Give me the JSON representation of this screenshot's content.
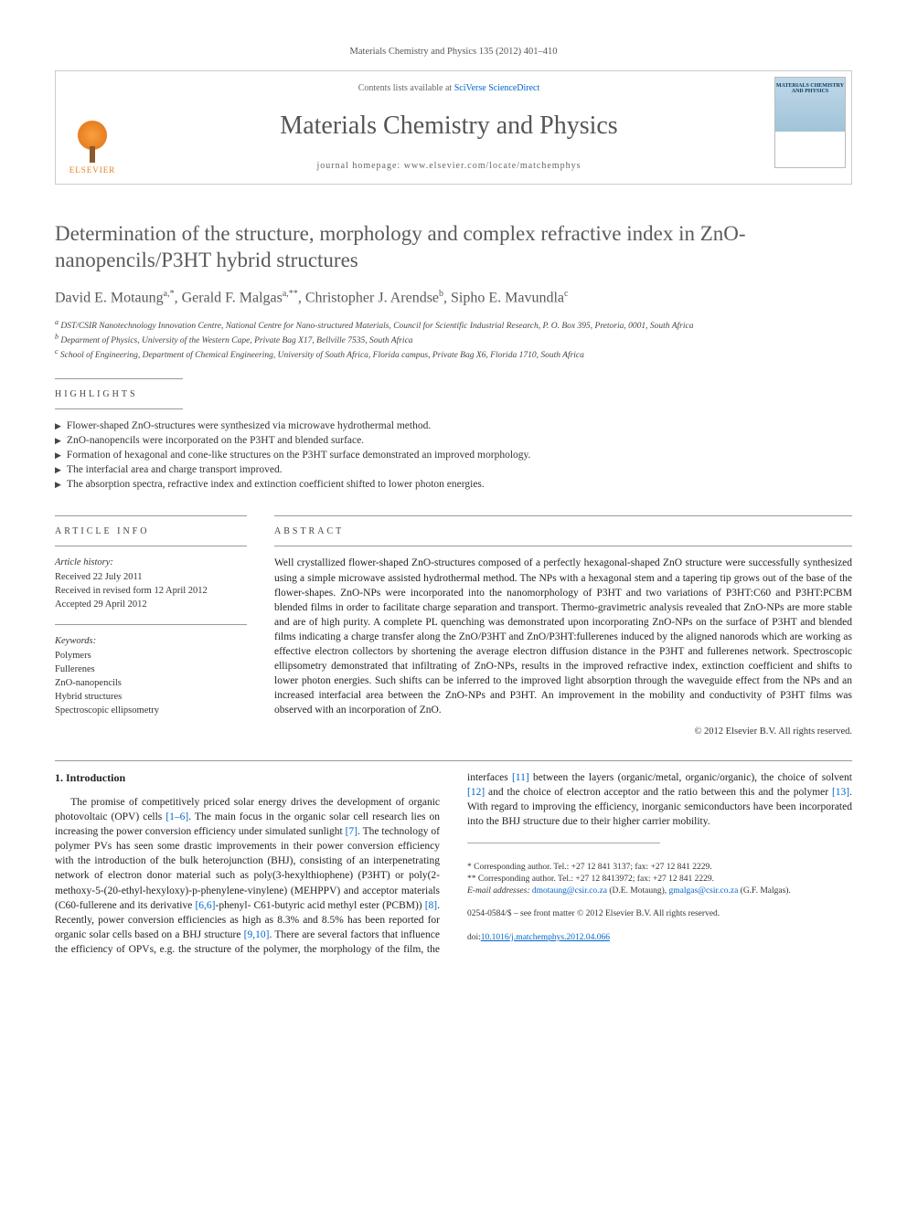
{
  "citation": "Materials Chemistry and Physics 135 (2012) 401–410",
  "header": {
    "contents_prefix": "Contents lists available at ",
    "contents_link": "SciVerse ScienceDirect",
    "journal_name": "Materials Chemistry and Physics",
    "homepage_prefix": "journal homepage: ",
    "homepage_url": "www.elsevier.com/locate/matchemphys",
    "publisher": "ELSEVIER",
    "cover_title": "MATERIALS CHEMISTRY AND PHYSICS"
  },
  "title": "Determination of the structure, morphology and complex refractive index in ZnO-nanopencils/P3HT hybrid structures",
  "authors_html": "David E. Motaung<sup>a,*</sup>, Gerald F. Malgas<sup>a,**</sup>, Christopher J. Arendse<sup>b</sup>, Sipho E. Mavundla<sup>c</sup>",
  "affiliations": [
    "a DST/CSIR Nanotechnology Innovation Centre, National Centre for Nano-structured Materials, Council for Scientific Industrial Research, P. O. Box 395, Pretoria, 0001, South Africa",
    "b Deparment of Physics, University of the Western Cape, Private Bag X17, Bellville 7535, South Africa",
    "c School of Engineering, Department of Chemical Engineering, University of South Africa, Florida campus, Private Bag X6, Florida 1710, South Africa"
  ],
  "highlights_label": "highlights",
  "highlights": [
    "Flower-shaped ZnO-structures were synthesized via microwave hydrothermal method.",
    "ZnO-nanopencils were incorporated on the P3HT and blended surface.",
    "Formation of hexagonal and cone-like structures on the P3HT surface demonstrated an improved morphology.",
    "The interfacial area and charge transport improved.",
    "The absorption spectra, refractive index and extinction coefficient shifted to lower photon energies."
  ],
  "article_info_label": "article info",
  "abstract_label": "abstract",
  "history_label": "Article history:",
  "history": [
    "Received 22 July 2011",
    "Received in revised form 12 April 2012",
    "Accepted 29 April 2012"
  ],
  "keywords_label": "Keywords:",
  "keywords": [
    "Polymers",
    "Fullerenes",
    "ZnO-nanopencils",
    "Hybrid structures",
    "Spectroscopic ellipsometry"
  ],
  "abstract": "Well crystallized flower-shaped ZnO-structures composed of a perfectly hexagonal-shaped ZnO structure were successfully synthesized using a simple microwave assisted hydrothermal method. The NPs with a hexagonal stem and a tapering tip grows out of the base of the flower-shapes. ZnO-NPs were incorporated into the nanomorphology of P3HT and two variations of P3HT:C60 and P3HT:PCBM blended films in order to facilitate charge separation and transport. Thermo-gravimetric analysis revealed that ZnO-NPs are more stable and are of high purity. A complete PL quenching was demonstrated upon incorporating ZnO-NPs on the surface of P3HT and blended films indicating a charge transfer along the ZnO/P3HT and ZnO/P3HT:fullerenes induced by the aligned nanorods which are working as effective electron collectors by shortening the average electron diffusion distance in the P3HT and fullerenes network. Spectroscopic ellipsometry demonstrated that infiltrating of ZnO-NPs, results in the improved refractive index, extinction coefficient and shifts to lower photon energies. Such shifts can be inferred to the improved light absorption through the waveguide effect from the NPs and an increased interfacial area between the ZnO-NPs and P3HT. An improvement in the mobility and conductivity of P3HT films was observed with an incorporation of ZnO.",
  "copyright": "© 2012 Elsevier B.V. All rights reserved.",
  "intro_heading": "1. Introduction",
  "intro_para": "The promise of competitively priced solar energy drives the development of organic photovoltaic (OPV) cells [1–6]. The main focus in the organic solar cell research lies on increasing the power conversion efficiency under simulated sunlight [7]. The technology of polymer PVs has seen some drastic improvements in their power conversion efficiency with the introduction of the bulk heterojunction (BHJ), consisting of an interpenetrating network of electron donor material such as poly(3-hexylthiophene) (P3HT) or poly(2-methoxy-5-(20-ethyl-hexyloxy)-p-phenylene-vinylene) (MEHPPV) and acceptor materials (C60-fullerene and its derivative [6,6]-phenyl- C61-butyric acid methyl ester (PCBM)) [8]. Recently, power conversion efficiencies as high as 8.3% and 8.5% has been reported for organic solar cells based on a BHJ structure [9,10]. There are several factors that influence the efficiency of OPVs, e.g. the structure of the polymer, the morphology of the film, the interfaces [11] between the layers (organic/metal, organic/organic), the choice of solvent [12] and the choice of electron acceptor and the ratio between this and the polymer [13]. With regard to improving the efficiency, inorganic semiconductors have been incorporated into the BHJ structure due to their higher carrier mobility.",
  "footnotes": {
    "corr1": "* Corresponding author. Tel.: +27 12 841 3137; fax: +27 12 841 2229.",
    "corr2": "** Corresponding author. Tel.: +27 12 8413972; fax: +27 12 841 2229.",
    "email_label": "E-mail addresses:",
    "email1": "dmotaung@csir.co.za",
    "email1_name": "(D.E. Motaung),",
    "email2": "gmalgas@csir.co.za",
    "email2_name": "(G.F. Malgas)."
  },
  "footer": {
    "issn": "0254-0584/$ – see front matter © 2012 Elsevier B.V. All rights reserved.",
    "doi_label": "doi:",
    "doi": "10.1016/j.matchemphys.2012.04.066"
  },
  "refs": {
    "r1_6": "[1–6]",
    "r7": "[7]",
    "r8": "[8]",
    "r9_10": "[9,10]",
    "r11": "[11]",
    "r12": "[12]",
    "r13": "[13]",
    "r66": "[6,6]"
  },
  "colors": {
    "link": "#0066cc",
    "text": "#222222",
    "heading_gray": "#5a5a5a",
    "rule": "#999999"
  }
}
